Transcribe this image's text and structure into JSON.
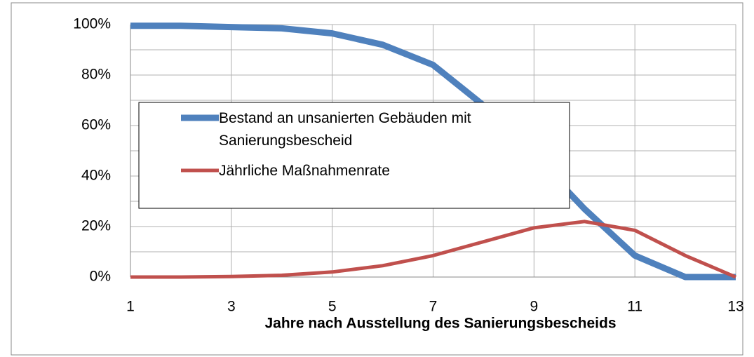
{
  "chart_data": {
    "type": "line",
    "xlabel": "Jahre nach Ausstellung des  Sanierungsbescheids",
    "x": [
      1,
      2,
      3,
      4,
      5,
      6,
      7,
      8,
      9,
      10,
      11,
      12,
      13
    ],
    "series": [
      {
        "name": "Bestand an unsanierten Gebäuden mit Sanierungsbescheid",
        "color": "#4f81bd",
        "values": [
          99.5,
          99.5,
          99,
          98.5,
          96.5,
          92,
          84,
          68,
          48,
          27,
          8.5,
          0,
          0
        ]
      },
      {
        "name": "Jährliche Maßnahmenrate",
        "color": "#c0504d",
        "values": [
          0,
          0,
          0.2,
          0.7,
          2,
          4.5,
          8.5,
          14,
          19.5,
          22,
          18.5,
          8.5,
          0
        ]
      }
    ],
    "xlim": [
      1,
      13
    ],
    "xticks": [
      1,
      3,
      5,
      7,
      9,
      11,
      13
    ],
    "ylim": [
      0,
      100
    ],
    "yticks": [
      {
        "value": 0,
        "label": "0%"
      },
      {
        "value": 20,
        "label": "20%"
      },
      {
        "value": 40,
        "label": "40%"
      },
      {
        "value": 60,
        "label": "60%"
      },
      {
        "value": 80,
        "label": "80%"
      },
      {
        "value": 100,
        "label": "100%"
      }
    ],
    "minor_yticks": [
      10,
      30,
      50,
      70,
      90
    ],
    "grid": true
  }
}
